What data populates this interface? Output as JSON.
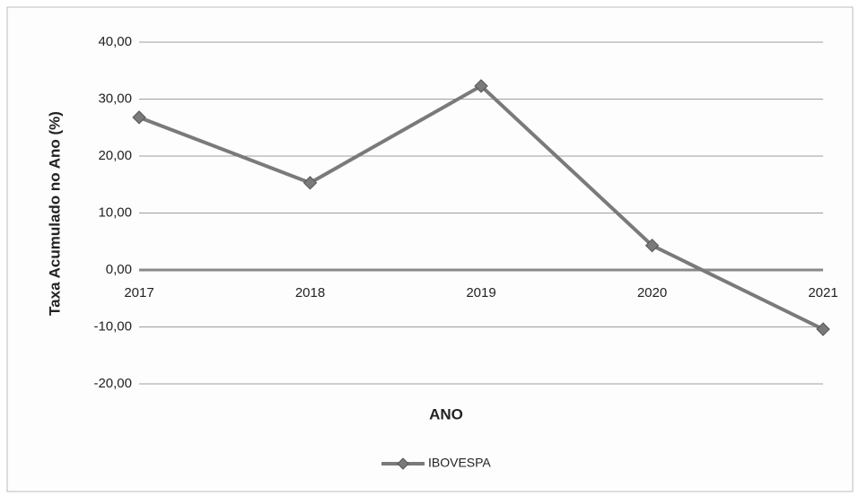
{
  "chart_data": {
    "type": "line",
    "y_label": "Taxa Acumulado no Ano (%)",
    "x_label": "ANO",
    "categories": [
      "2017",
      "2018",
      "2019",
      "2020",
      "2021"
    ],
    "series": [
      {
        "name": "IBOVESPA",
        "color": "#7a7a7a",
        "values": [
          26.8,
          15.3,
          32.3,
          4.3,
          -10.4
        ]
      }
    ],
    "ylim": [
      -20,
      40
    ],
    "yticks": [
      {
        "value": -20,
        "label": "-20,00"
      },
      {
        "value": -10,
        "label": "-10,00"
      },
      {
        "value": 0,
        "label": "0,00"
      },
      {
        "value": 10,
        "label": "10,00"
      },
      {
        "value": 20,
        "label": "20,00"
      },
      {
        "value": 30,
        "label": "30,00"
      },
      {
        "value": 40,
        "label": "40,00"
      }
    ],
    "grid": true,
    "legend": "bottom"
  }
}
